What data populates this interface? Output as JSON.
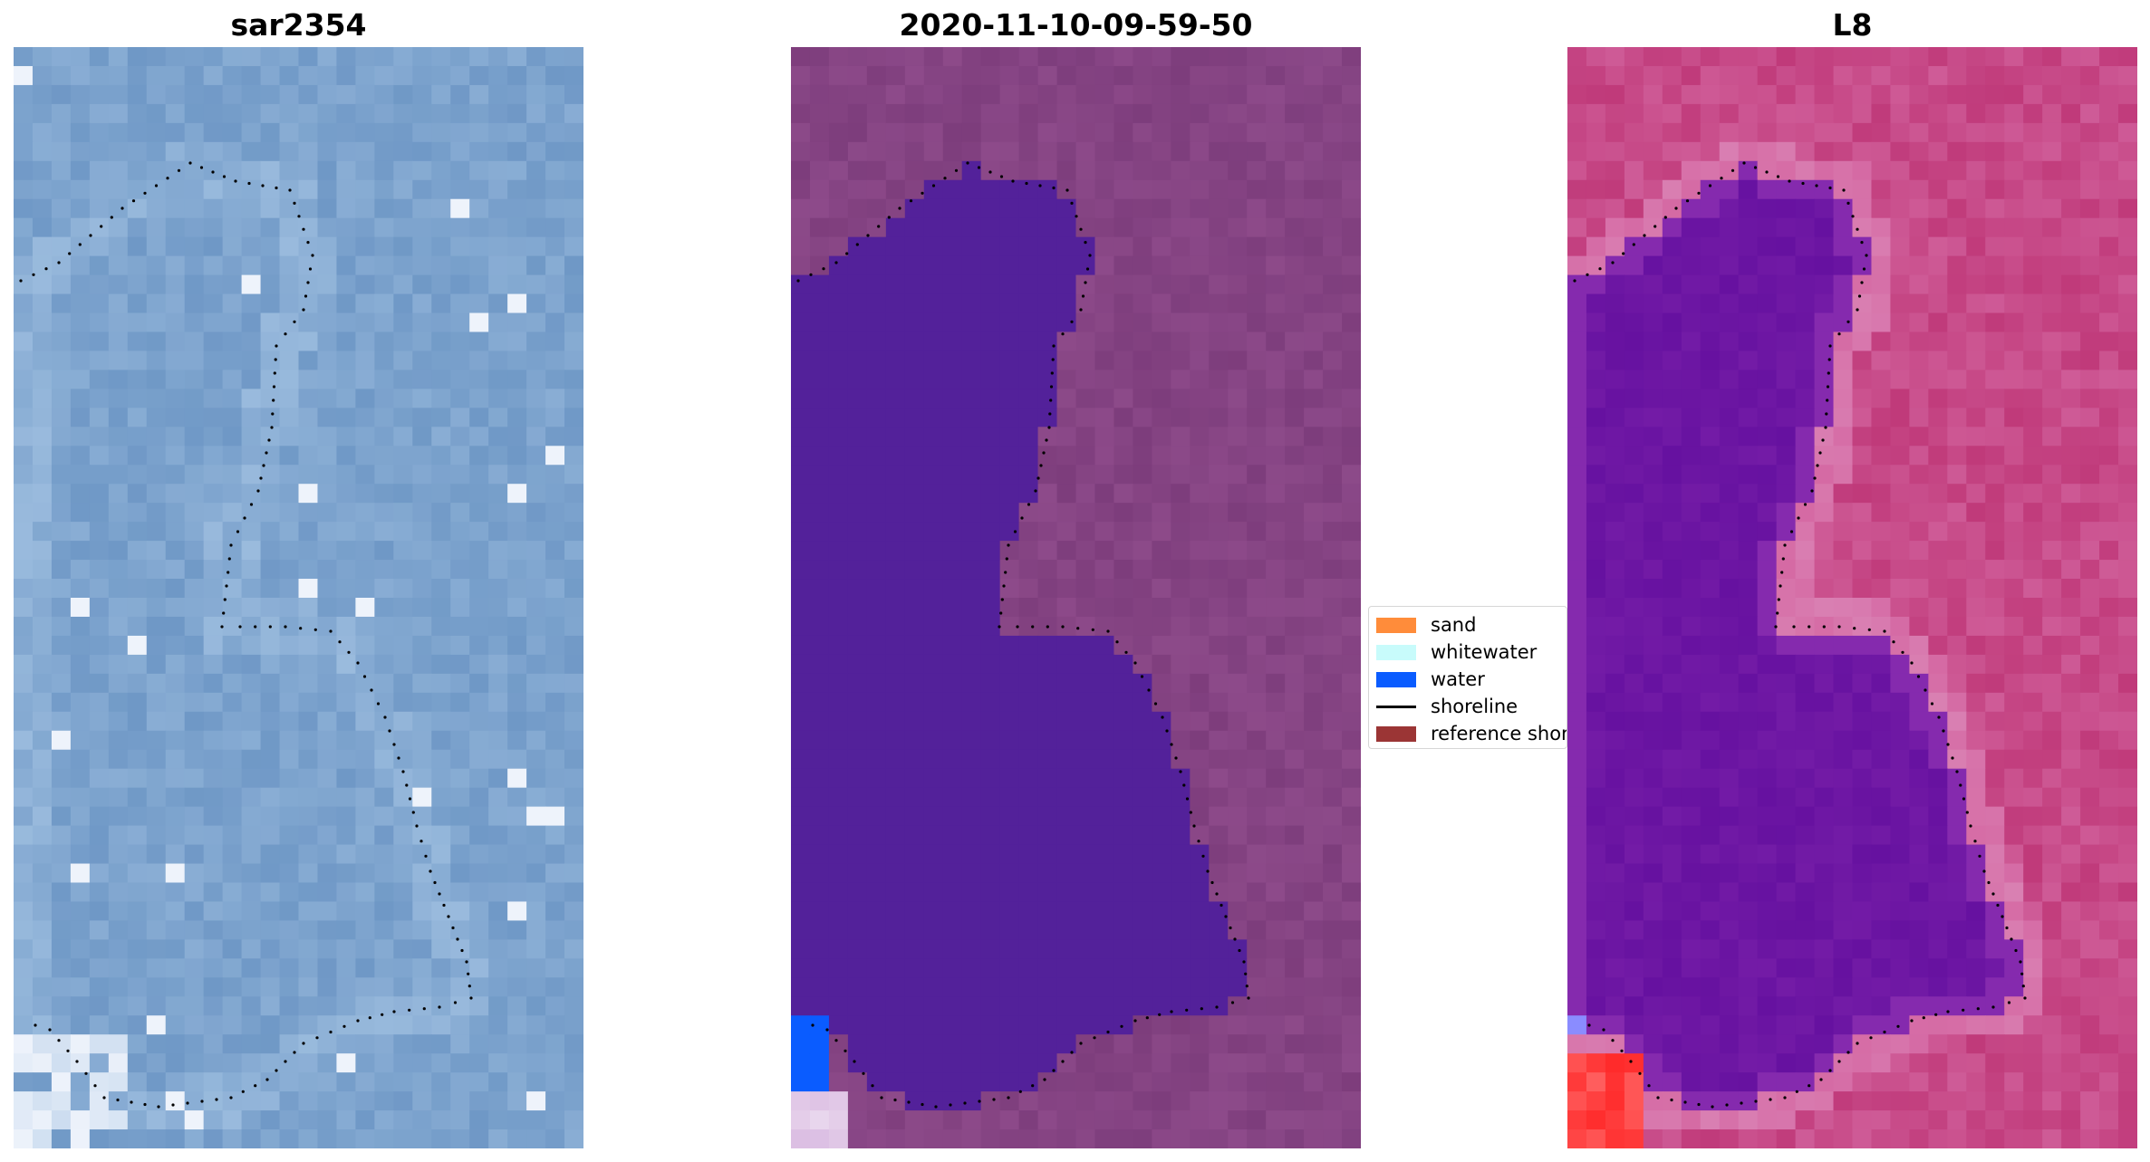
{
  "chart_data": {
    "type": "image",
    "panels": [
      {
        "title": "sar2354",
        "palette": {
          "base": "#6f98c6",
          "light": "#9fbfe0",
          "bright": "#eef3fb"
        }
      },
      {
        "title": "2020-11-10-09-59-50",
        "palette": {
          "land": "#7d3d7c",
          "land_light": "#9a5595",
          "water": "#53219a",
          "water_bright": "#0a5cff",
          "sand": "#d8b8e0"
        }
      },
      {
        "title": "L8",
        "palette": {
          "land": "#c03a7a",
          "land_light": "#d56aa4",
          "water": "#6611a0",
          "edge": "#9a3ab8",
          "red": "#ff2a2a"
        }
      }
    ],
    "legend": {
      "placement": "center",
      "entries": [
        {
          "label": "sand",
          "kind": "patch",
          "color": "#ff8c3a"
        },
        {
          "label": "whitewater",
          "kind": "patch",
          "color": "#c8fbfb"
        },
        {
          "label": "water",
          "kind": "patch",
          "color": "#0a5cff"
        },
        {
          "label": "shoreline",
          "kind": "line",
          "color": "#000000"
        },
        {
          "label": "reference shoreline",
          "kind": "patch",
          "color": "#9b3535"
        }
      ]
    },
    "shoreline_color": "#000000"
  }
}
